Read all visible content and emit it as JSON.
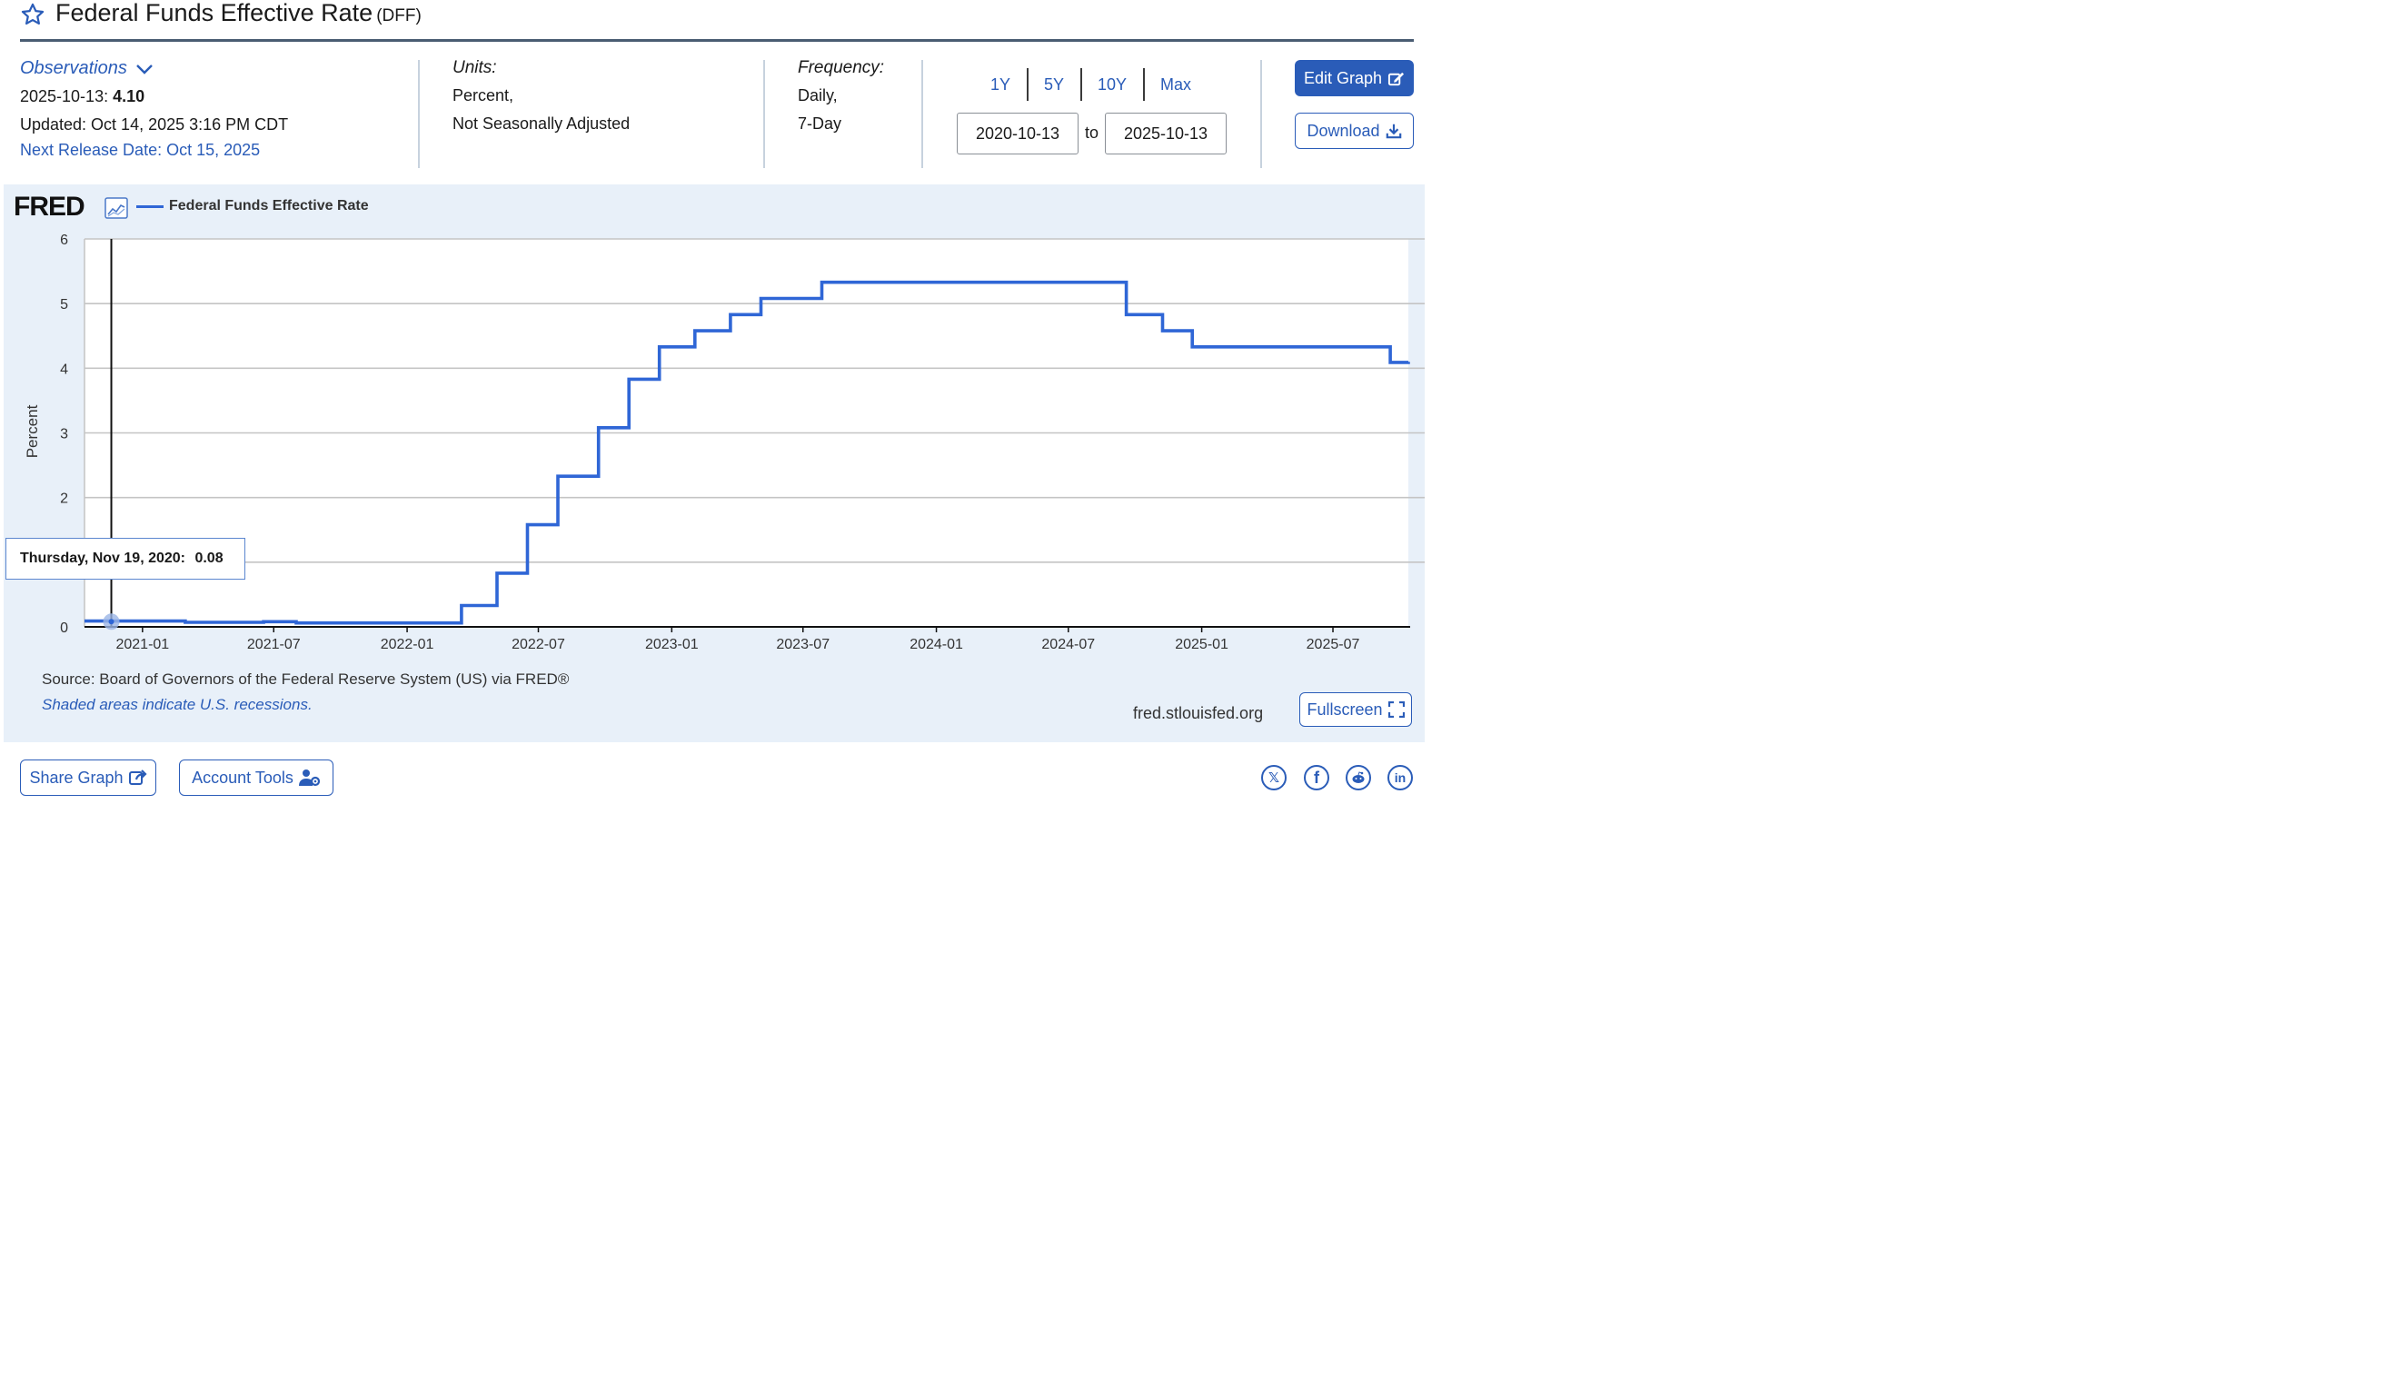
{
  "header": {
    "title": "Federal Funds Effective Rate",
    "series_code": "(DFF)"
  },
  "observations": {
    "label": "Observations",
    "date": "2025-10-13:",
    "value": "4.10",
    "updated": "Updated: Oct 14, 2025 3:16 PM CDT",
    "next_release": "Next Release Date: Oct 15, 2025"
  },
  "units": {
    "label": "Units:",
    "line1": "Percent,",
    "line2": "Not Seasonally Adjusted"
  },
  "frequency": {
    "label": "Frequency:",
    "line1": "Daily,",
    "line2": "7-Day"
  },
  "range": {
    "buttons": [
      "1Y",
      "5Y",
      "10Y",
      "Max"
    ],
    "start": "2020-10-13",
    "to": "to",
    "end": "2025-10-13"
  },
  "actions": {
    "edit": "Edit Graph",
    "download": "Download"
  },
  "chart": {
    "logo": "FRED",
    "legend": "Federal Funds Effective Rate",
    "ylabel": "Percent",
    "tooltip_date": "Thursday, Nov 19, 2020:",
    "tooltip_value": "0.08",
    "source": "Source: Board of Governors of the Federal Reserve System (US) via FRED®",
    "recession_note": "Shaded areas indicate U.S. recessions.",
    "site": "fred.stlouisfed.org",
    "fullscreen": "Fullscreen"
  },
  "footer": {
    "share": "Share Graph",
    "account": "Account Tools"
  },
  "colors": {
    "accent": "#2a5cb8",
    "series": "#2f66d6",
    "panel": "#e8f0f9"
  },
  "icons": [
    "star-icon",
    "chevron-down-icon",
    "edit-icon",
    "download-icon",
    "trend-icon",
    "fullscreen-icon",
    "share-icon",
    "user-cog-icon",
    "x-icon",
    "facebook-icon",
    "reddit-icon",
    "linkedin-icon"
  ],
  "chart_data": {
    "type": "line",
    "title": "",
    "ylabel": "Percent",
    "ylim": [
      0,
      6
    ],
    "y_ticks": [
      0,
      1,
      2,
      3,
      4,
      5,
      6
    ],
    "y_tick_labels": [
      "0",
      "",
      "2",
      "3",
      "4",
      "5",
      "6"
    ],
    "x_tick_labels": [
      "2021-01",
      "2021-07",
      "2022-01",
      "2022-07",
      "2023-01",
      "2023-07",
      "2024-01",
      "2024-07",
      "2025-01",
      "2025-07"
    ],
    "x_ticks": [
      "2021-01-01",
      "2021-07-01",
      "2022-01-01",
      "2022-07-01",
      "2023-01-01",
      "2023-07-01",
      "2024-01-01",
      "2024-07-01",
      "2025-01-01",
      "2025-07-01"
    ],
    "xlim": [
      "2020-10-13",
      "2025-10-13"
    ],
    "grid": true,
    "series": [
      {
        "name": "Federal Funds Effective Rate",
        "x": [
          "2020-10-13",
          "2021-03-01",
          "2021-06-17",
          "2021-08-01",
          "2022-03-17",
          "2022-05-05",
          "2022-06-16",
          "2022-07-28",
          "2022-09-22",
          "2022-11-03",
          "2022-12-15",
          "2023-02-02",
          "2023-03-23",
          "2023-05-04",
          "2023-07-27",
          "2024-09-19",
          "2024-11-08",
          "2024-12-19",
          "2025-09-18",
          "2025-10-13"
        ],
        "y": [
          0.09,
          0.07,
          0.08,
          0.06,
          0.33,
          0.83,
          1.58,
          2.33,
          3.08,
          3.83,
          4.33,
          4.58,
          4.83,
          5.08,
          5.33,
          4.83,
          4.58,
          4.33,
          4.09,
          4.1
        ]
      }
    ],
    "crosshair": {
      "x": "2020-11-19",
      "y": 0.08
    }
  }
}
